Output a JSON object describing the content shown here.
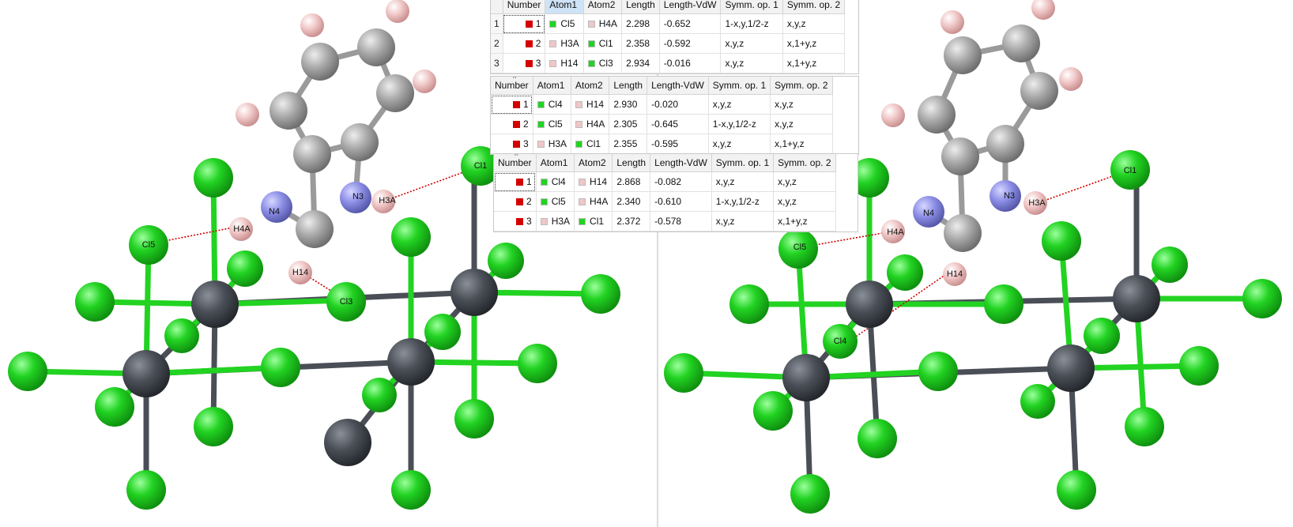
{
  "colors": {
    "cl": "#22d322",
    "metal": "#4a4f57",
    "c": "#a9a9a9",
    "n": "#8c8ee6",
    "h": "#f0c6c6",
    "contact": "#d00000",
    "flag": "#d40000"
  },
  "scene_labels": {
    "left": {
      "cl1": "Cl1",
      "cl5": "Cl5",
      "cl3": "Cl3",
      "n4": "N4",
      "n3": "N3",
      "h3a": "H3A",
      "h4a": "H4A",
      "h14": "H14"
    },
    "right": {
      "cl1": "Cl1",
      "cl5": "Cl5",
      "cl4": "Cl4",
      "n4": "N4",
      "n3": "N3",
      "h3a": "H3A",
      "h4a": "H4A",
      "h14": "H14"
    }
  },
  "columns": [
    "Number",
    "Atom1",
    "Atom2",
    "Length",
    "Length-VdW",
    "Symm. op. 1",
    "Symm. op. 2"
  ],
  "tables": [
    {
      "rows": [
        {
          "idx": "1",
          "num": "1",
          "a1": "Cl5",
          "a1c": "cl",
          "a2": "H4A",
          "a2c": "h",
          "len": "2.298",
          "vdw": "-0.652",
          "s1": "1-x,y,1/2-z",
          "s2": "x,y,z"
        },
        {
          "idx": "2",
          "num": "2",
          "a1": "H3A",
          "a1c": "h",
          "a2": "Cl1",
          "a2c": "cl",
          "len": "2.358",
          "vdw": "-0.592",
          "s1": "x,y,z",
          "s2": "x,1+y,z"
        },
        {
          "idx": "3",
          "num": "3",
          "a1": "H14",
          "a1c": "h",
          "a2": "Cl3",
          "a2c": "cl",
          "len": "2.934",
          "vdw": "-0.016",
          "s1": "x,y,z",
          "s2": "x,1+y,z"
        }
      ]
    },
    {
      "rows": [
        {
          "idx": "",
          "num": "1",
          "a1": "Cl4",
          "a1c": "cl",
          "a2": "H14",
          "a2c": "h",
          "len": "2.930",
          "vdw": "-0.020",
          "s1": "x,y,z",
          "s2": "x,y,z"
        },
        {
          "idx": "",
          "num": "2",
          "a1": "Cl5",
          "a1c": "cl",
          "a2": "H4A",
          "a2c": "h",
          "len": "2.305",
          "vdw": "-0.645",
          "s1": "1-x,y,1/2-z",
          "s2": "x,y,z"
        },
        {
          "idx": "",
          "num": "3",
          "a1": "H3A",
          "a1c": "h",
          "a2": "Cl1",
          "a2c": "cl",
          "len": "2.355",
          "vdw": "-0.595",
          "s1": "x,y,z",
          "s2": "x,1+y,z"
        }
      ]
    },
    {
      "rows": [
        {
          "idx": "",
          "num": "1",
          "a1": "Cl4",
          "a1c": "cl",
          "a2": "H14",
          "a2c": "h",
          "len": "2.868",
          "vdw": "-0.082",
          "s1": "x,y,z",
          "s2": "x,y,z"
        },
        {
          "idx": "",
          "num": "2",
          "a1": "Cl5",
          "a1c": "cl",
          "a2": "H4A",
          "a2c": "h",
          "len": "2.340",
          "vdw": "-0.610",
          "s1": "1-x,y,1/2-z",
          "s2": "x,y,z"
        },
        {
          "idx": "",
          "num": "3",
          "a1": "H3A",
          "a1c": "h",
          "a2": "Cl1",
          "a2c": "cl",
          "len": "2.372",
          "vdw": "-0.578",
          "s1": "x,y,z",
          "s2": "x,1+y,z"
        }
      ]
    }
  ]
}
